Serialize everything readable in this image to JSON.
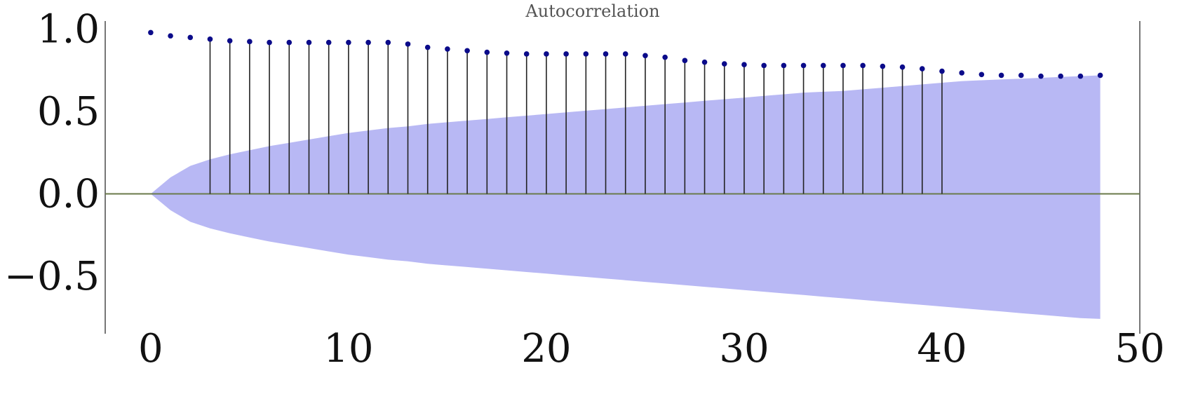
{
  "chart_data": {
    "type": "scatter",
    "title": "Autocorrelation",
    "xlabel": "",
    "ylabel": "",
    "xlim": [
      -2.3,
      50
    ],
    "ylim": [
      -0.85,
      1.05
    ],
    "x_ticks": [
      "0",
      "10",
      "20",
      "30",
      "40",
      "50"
    ],
    "x_tick_values": [
      0,
      10,
      20,
      30,
      40,
      50
    ],
    "y_ticks": [
      "1.0",
      "0.5",
      "0.0",
      "−0.5"
    ],
    "y_tick_values": [
      1.0,
      0.5,
      0.0,
      -0.5
    ],
    "grid": false,
    "colors": {
      "points": "#0b0b8a",
      "confidence_band": "#b8b8f4",
      "stems": "#222222",
      "zero_line": "#6a7a4a"
    },
    "lags": [
      0,
      1,
      2,
      3,
      4,
      5,
      6,
      7,
      8,
      9,
      10,
      11,
      12,
      13,
      14,
      15,
      16,
      17,
      18,
      19,
      20,
      21,
      22,
      23,
      24,
      25,
      26,
      27,
      28,
      29,
      30,
      31,
      32,
      33,
      34,
      35,
      36,
      37,
      38,
      39,
      40,
      41,
      42,
      43,
      44,
      45,
      46,
      47,
      48
    ],
    "acf": [
      0.98,
      0.96,
      0.95,
      0.94,
      0.93,
      0.925,
      0.92,
      0.92,
      0.92,
      0.92,
      0.92,
      0.92,
      0.92,
      0.91,
      0.89,
      0.88,
      0.87,
      0.86,
      0.855,
      0.85,
      0.85,
      0.85,
      0.85,
      0.85,
      0.85,
      0.84,
      0.83,
      0.81,
      0.8,
      0.79,
      0.785,
      0.78,
      0.78,
      0.78,
      0.78,
      0.78,
      0.78,
      0.775,
      0.77,
      0.76,
      0.745,
      0.735,
      0.725,
      0.72,
      0.72,
      0.715,
      0.715,
      0.715,
      0.72
    ],
    "confidence_upper": [
      0.0,
      0.1,
      0.17,
      0.21,
      0.24,
      0.265,
      0.29,
      0.31,
      0.33,
      0.35,
      0.37,
      0.385,
      0.4,
      0.41,
      0.425,
      0.435,
      0.445,
      0.455,
      0.465,
      0.475,
      0.485,
      0.495,
      0.505,
      0.515,
      0.525,
      0.535,
      0.545,
      0.555,
      0.565,
      0.575,
      0.585,
      0.595,
      0.605,
      0.615,
      0.62,
      0.625,
      0.635,
      0.645,
      0.655,
      0.665,
      0.675,
      0.685,
      0.69,
      0.695,
      0.7,
      0.705,
      0.71,
      0.715,
      0.72
    ],
    "confidence_lower": [
      0.0,
      -0.1,
      -0.17,
      -0.21,
      -0.24,
      -0.265,
      -0.29,
      -0.31,
      -0.33,
      -0.35,
      -0.37,
      -0.385,
      -0.4,
      -0.41,
      -0.425,
      -0.435,
      -0.445,
      -0.455,
      -0.465,
      -0.475,
      -0.485,
      -0.495,
      -0.505,
      -0.515,
      -0.525,
      -0.535,
      -0.545,
      -0.555,
      -0.565,
      -0.575,
      -0.585,
      -0.595,
      -0.605,
      -0.615,
      -0.625,
      -0.635,
      -0.645,
      -0.655,
      -0.665,
      -0.675,
      -0.685,
      -0.695,
      -0.705,
      -0.715,
      -0.725,
      -0.735,
      -0.745,
      -0.755,
      -0.76
    ]
  }
}
